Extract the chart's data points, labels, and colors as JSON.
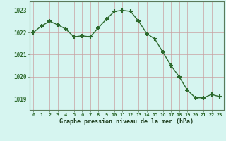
{
  "x": [
    0,
    1,
    2,
    3,
    4,
    5,
    6,
    7,
    8,
    9,
    10,
    11,
    12,
    13,
    14,
    15,
    16,
    17,
    18,
    19,
    20,
    21,
    22,
    23
  ],
  "y": [
    1022.0,
    1022.3,
    1022.5,
    1022.35,
    1022.15,
    1021.8,
    1021.85,
    1021.8,
    1022.2,
    1022.6,
    1022.95,
    1023.0,
    1022.95,
    1022.5,
    1021.95,
    1021.7,
    1021.1,
    1020.5,
    1020.0,
    1019.4,
    1019.05,
    1019.05,
    1019.2,
    1019.1
  ],
  "line_color": "#2d6a2d",
  "marker": "+",
  "marker_size": 5,
  "bg_color": "#d6f5f0",
  "grid_color": "#b0c8c8",
  "xlabel": "Graphe pression niveau de la mer (hPa)",
  "xlabel_color": "#1a3a1a",
  "tick_label_color": "#2d6a2d",
  "ylim": [
    1018.5,
    1023.4
  ],
  "xlim": [
    -0.5,
    23.5
  ],
  "yticks": [
    1019,
    1020,
    1021,
    1022,
    1023
  ],
  "xticks": [
    0,
    1,
    2,
    3,
    4,
    5,
    6,
    7,
    8,
    9,
    10,
    11,
    12,
    13,
    14,
    15,
    16,
    17,
    18,
    19,
    20,
    21,
    22,
    23
  ],
  "xtick_labels": [
    "0",
    "1",
    "2",
    "3",
    "4",
    "5",
    "6",
    "7",
    "8",
    "9",
    "10",
    "11",
    "12",
    "13",
    "14",
    "15",
    "16",
    "17",
    "18",
    "19",
    "20",
    "21",
    "22",
    "23"
  ]
}
